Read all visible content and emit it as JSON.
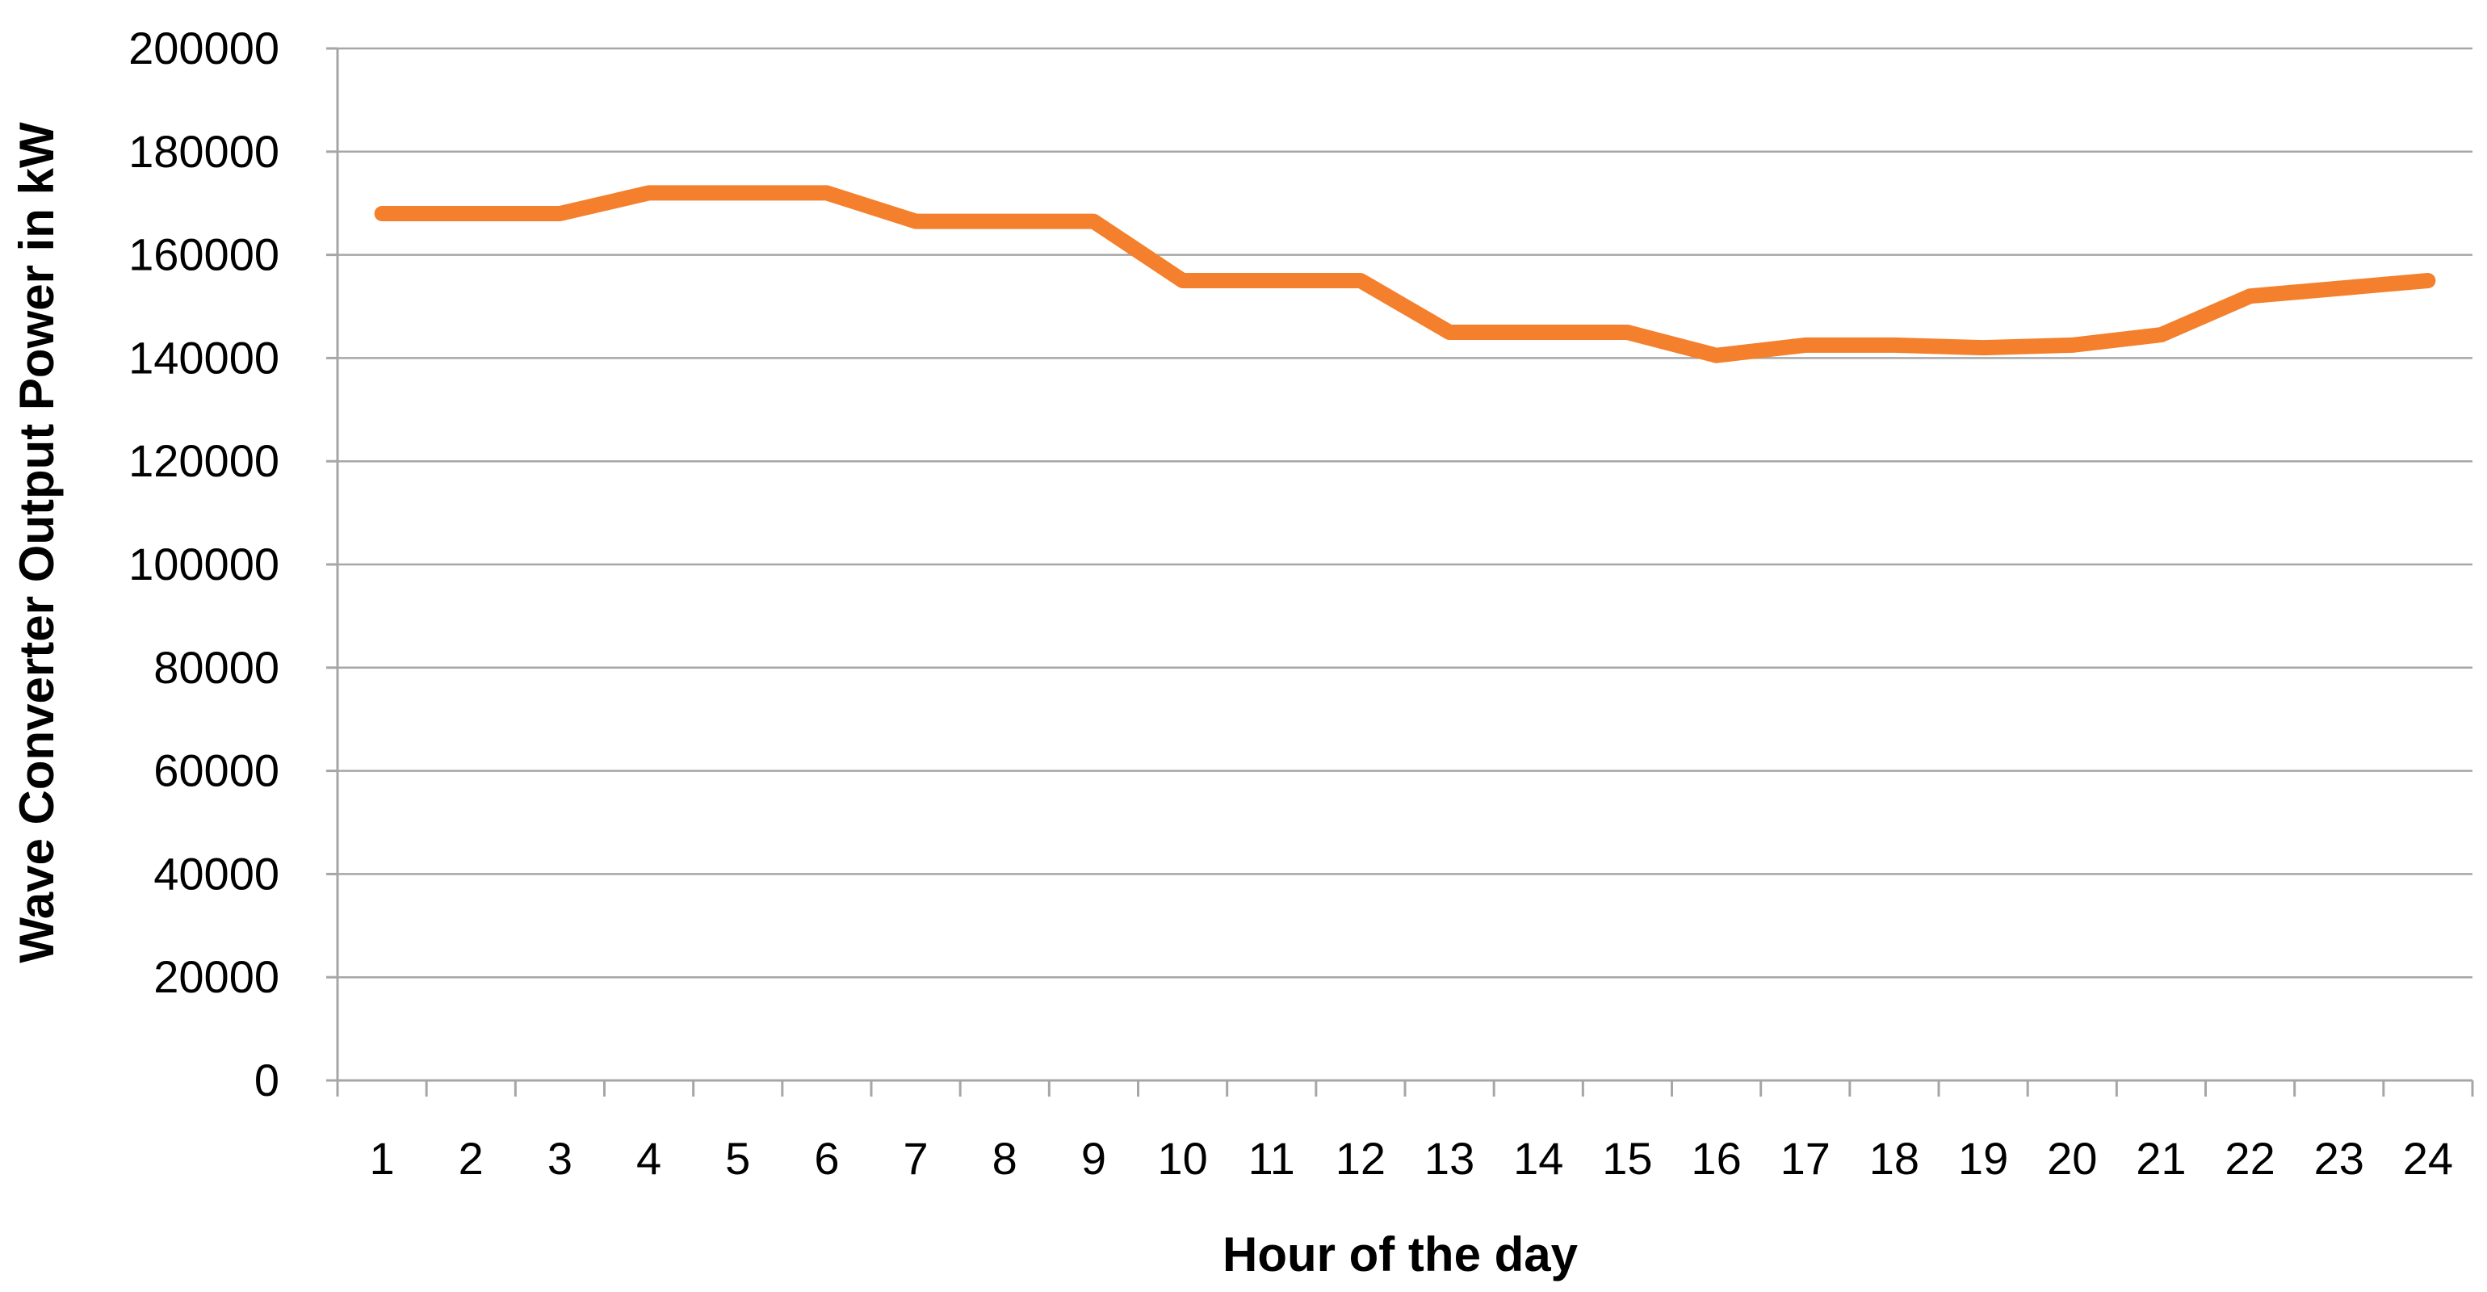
{
  "chart_data": {
    "type": "line",
    "title": "",
    "xlabel": "Hour of the day",
    "ylabel": "Wave Converter Output  Power in kW",
    "ylim": [
      0,
      200000
    ],
    "yticks": [
      0,
      20000,
      40000,
      60000,
      80000,
      100000,
      120000,
      140000,
      160000,
      180000,
      200000
    ],
    "ytick_labels": [
      "0",
      "20000",
      "40000",
      "60000",
      "80000",
      "100000",
      "120000",
      "140000",
      "160000",
      "180000",
      "200000"
    ],
    "categories": [
      "1",
      "2",
      "3",
      "4",
      "5",
      "6",
      "7",
      "8",
      "9",
      "10",
      "11",
      "12",
      "13",
      "14",
      "15",
      "16",
      "17",
      "18",
      "19",
      "20",
      "21",
      "22",
      "23",
      "24"
    ],
    "grid": true,
    "legend": "none",
    "series": [
      {
        "color": "#f47f2c",
        "values": [
          168000,
          168000,
          168000,
          172000,
          172000,
          172000,
          166500,
          166500,
          166500,
          155000,
          155000,
          155000,
          145000,
          145000,
          145000,
          140500,
          142500,
          142500,
          142000,
          142500,
          144500,
          152000,
          153500,
          155000
        ]
      }
    ]
  }
}
